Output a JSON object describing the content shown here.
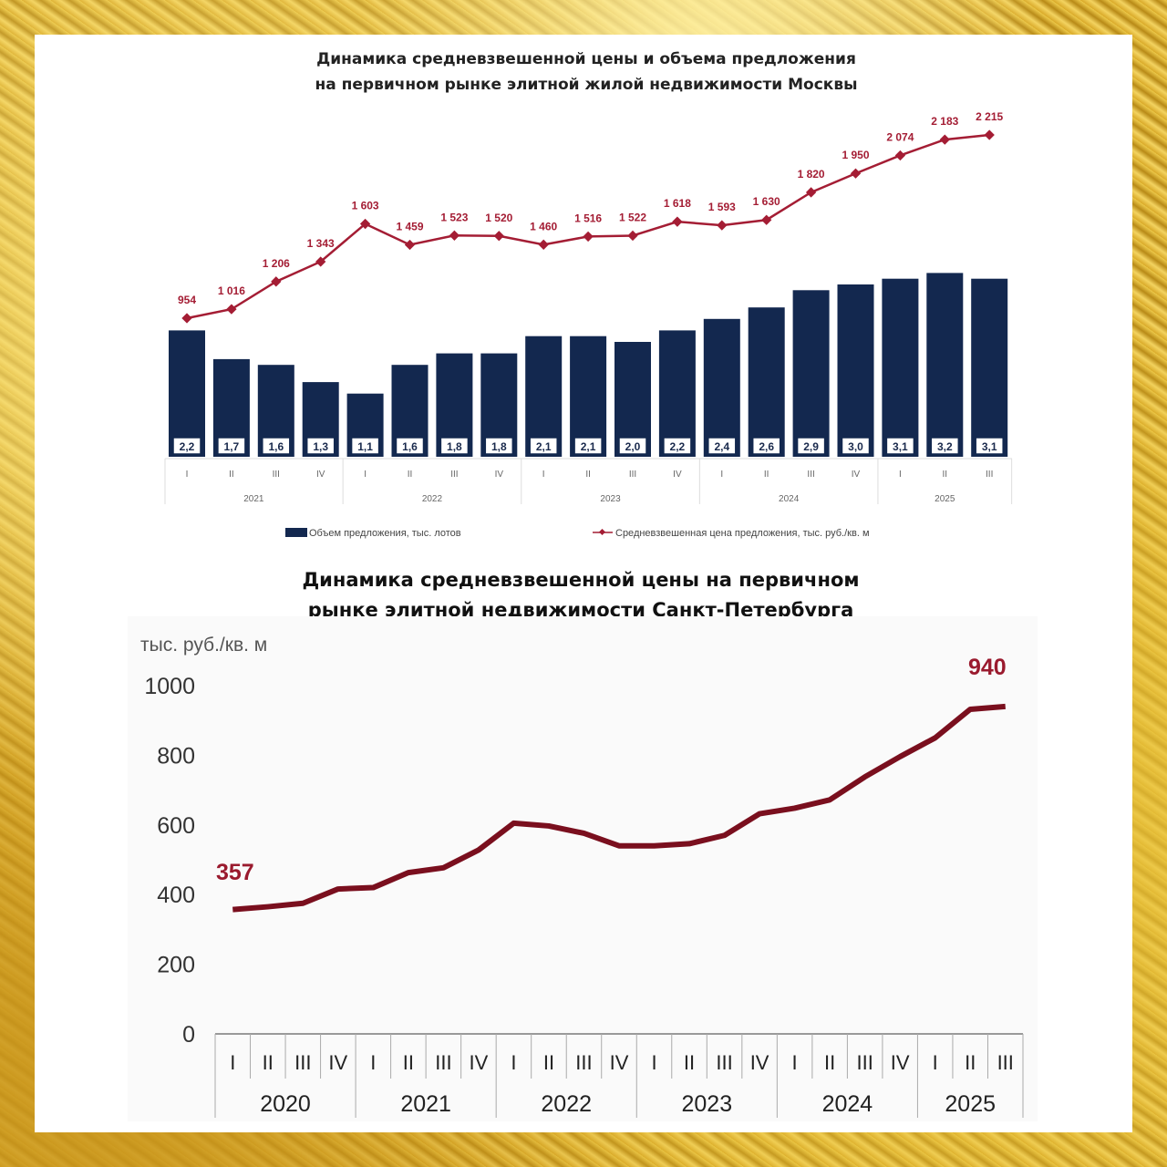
{
  "colors": {
    "bar": "#13284f",
    "price_line": "#a41d34",
    "spb_line": "#7a0f1e"
  },
  "chart_data": [
    {
      "type": "bar",
      "title_line1": "Динамика средневзвешенной цены и объема предложения",
      "title_line2": "на первичном рынке элитной жилой недвижимости Москвы",
      "quarters": [
        "I",
        "II",
        "III",
        "IV",
        "I",
        "II",
        "III",
        "IV",
        "I",
        "II",
        "III",
        "IV",
        "I",
        "II",
        "III",
        "IV",
        "I",
        "II",
        "III"
      ],
      "years": [
        {
          "label": "2021",
          "span": 4
        },
        {
          "label": "2022",
          "span": 4
        },
        {
          "label": "2023",
          "span": 4
        },
        {
          "label": "2024",
          "span": 4
        },
        {
          "label": "2025",
          "span": 3
        }
      ],
      "series": [
        {
          "name": "Объем предложения, тыс. лотов",
          "type": "bar",
          "values": [
            2.2,
            1.7,
            1.6,
            1.3,
            1.1,
            1.6,
            1.8,
            1.8,
            2.1,
            2.1,
            2.0,
            2.2,
            2.4,
            2.6,
            2.9,
            3.0,
            3.1,
            3.2,
            3.1
          ],
          "labels": [
            "2,2",
            "1,7",
            "1,6",
            "1,3",
            "1,1",
            "1,6",
            "1,8",
            "1,8",
            "2,1",
            "2,1",
            "2,0",
            "2,2",
            "2,4",
            "2,6",
            "2,9",
            "3,0",
            "3,1",
            "3,2",
            "3,1"
          ]
        },
        {
          "name": "Средневзвешенная цена предложения, тыс. руб./кв. м",
          "type": "line",
          "values": [
            954,
            1016,
            1206,
            1343,
            1603,
            1459,
            1523,
            1520,
            1460,
            1516,
            1522,
            1618,
            1593,
            1630,
            1820,
            1950,
            2074,
            2183,
            2215
          ],
          "labels": [
            "954",
            "1 016",
            "1 206",
            "1 343",
            "1 603",
            "1 459",
            "1 523",
            "1 520",
            "1 460",
            "1 516",
            "1 522",
            "1 618",
            "1 593",
            "1 630",
            "1 820",
            "1 950",
            "2 074",
            "2 183",
            "2 215"
          ]
        }
      ],
      "legend": "bottom"
    },
    {
      "type": "line",
      "title_line1": "Динамика средневзвешенной цены на первичном",
      "title_line2": "рынке элитной недвижимости Санкт-Петербурга",
      "ylabel": "тыс. руб./кв. м",
      "ylim": [
        0,
        1000
      ],
      "yticks": [
        "0",
        "200",
        "400",
        "600",
        "800",
        "1000"
      ],
      "quarters": [
        "I",
        "II",
        "III",
        "IV",
        "I",
        "II",
        "III",
        "IV",
        "I",
        "II",
        "III",
        "IV",
        "I",
        "II",
        "III",
        "IV",
        "I",
        "II",
        "III",
        "IV",
        "I",
        "II",
        "III"
      ],
      "years": [
        {
          "label": "2020",
          "span": 4
        },
        {
          "label": "2021",
          "span": 4
        },
        {
          "label": "2022",
          "span": 4
        },
        {
          "label": "2023",
          "span": 4
        },
        {
          "label": "2024",
          "span": 4
        },
        {
          "label": "2025",
          "span": 3
        }
      ],
      "values": [
        357,
        365,
        375,
        416,
        420,
        463,
        477,
        528,
        605,
        597,
        576,
        540,
        540,
        546,
        570,
        632,
        648,
        672,
        738,
        796,
        850,
        932,
        940
      ],
      "start_label": "357",
      "end_label": "940"
    }
  ]
}
